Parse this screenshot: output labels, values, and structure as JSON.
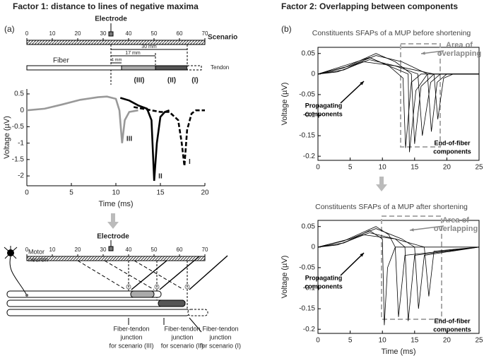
{
  "titles": {
    "left": "Factor 1: distance to lines of negative maxima",
    "right": "Factor 2: Overlapping between components"
  },
  "panels": [
    "(a)",
    "(b)"
  ],
  "scenario_ruler": {
    "label": "Scenario",
    "electrode": "Electrode",
    "xlim": [
      0,
      70
    ],
    "xticks": [
      0,
      10,
      20,
      30,
      40,
      50,
      60,
      70
    ]
  },
  "fiber": {
    "fiber": "Fiber",
    "tendon": "Tendon",
    "distances": [
      "30 mm",
      "17 mm",
      "4 mm"
    ],
    "scenarios": [
      "(III)",
      "(II)",
      "(I)"
    ]
  },
  "schematic": {
    "electrode": "Electrode",
    "xlim": [
      0,
      70
    ],
    "xticks": [
      0,
      10,
      20,
      30,
      40,
      50,
      60,
      70
    ],
    "motor_neuron": [
      "Motor",
      "neuron"
    ],
    "junctions": [
      [
        "Fiber-tendon",
        "junction",
        "for scenario (III)"
      ],
      [
        "Fiber-tendon",
        "junction",
        "for scenario (II)"
      ],
      [
        "Fiber-tendon",
        "junction",
        "for scenario (I)"
      ]
    ]
  },
  "chart_data": [
    {
      "type": "line",
      "xlabel": "Time  (ms)",
      "ylabel": "Voltage (µV)",
      "xlim": [
        0,
        20
      ],
      "xticks": [
        0,
        5,
        10,
        15,
        20
      ],
      "ylim": [
        -2.3,
        0.65
      ],
      "yticks": [
        0.5,
        0,
        -0.5,
        -1,
        -1.5,
        -2
      ],
      "series": [
        {
          "name": "III",
          "color": "#999999",
          "dash": false,
          "x": [
            0,
            2,
            4,
            6,
            8,
            9,
            10,
            10.4,
            10.7,
            11,
            11.5,
            12.5
          ],
          "values": [
            0,
            0.05,
            0.18,
            0.32,
            0.4,
            0.42,
            0.35,
            0,
            -1.0,
            -0.3,
            -0.05,
            0
          ]
        },
        {
          "name": "II",
          "color": "#000000",
          "dash": false,
          "x": [
            10.5,
            11.5,
            12.5,
            13.5,
            14,
            14.3,
            14.6,
            15,
            15.5,
            16
          ],
          "values": [
            0.38,
            0.3,
            0.15,
            0.05,
            -0.3,
            -2.15,
            -1.0,
            -0.2,
            -0.05,
            0
          ]
        },
        {
          "name": "I",
          "color": "#000000",
          "dash": true,
          "x": [
            12,
            13,
            14,
            15,
            16,
            17,
            17.4,
            17.7,
            18,
            18.5,
            19,
            20
          ],
          "values": [
            0.1,
            0.05,
            0,
            -0.05,
            -0.05,
            -0.3,
            -1.0,
            -1.7,
            -0.6,
            -0.1,
            0,
            0
          ]
        }
      ]
    },
    {
      "type": "line",
      "title": "Constituents SFAPs of a MUP before shortening",
      "ylabel": "Voltage (µV)",
      "xlim": [
        0,
        25
      ],
      "xticks": [
        0,
        5,
        10,
        15,
        20,
        25
      ],
      "ylim": [
        -0.21,
        0.065
      ],
      "yticks": [
        0.05,
        0,
        -0.05,
        -0.1,
        -0.15,
        -0.2
      ],
      "annotations": [
        {
          "text": [
            "Area of",
            "overlapping"
          ]
        },
        {
          "text": [
            "Propagating",
            "components"
          ]
        },
        {
          "text": [
            "End-of-fiber",
            "components"
          ]
        }
      ],
      "series": [
        {
          "color": "#000000",
          "x": [
            0,
            4,
            8,
            11,
            13.2,
            13.6,
            14.5,
            16,
            25
          ],
          "values": [
            0,
            0.01,
            0.04,
            0.02,
            -0.01,
            -0.18,
            -0.02,
            0,
            0
          ]
        },
        {
          "color": "#000000",
          "x": [
            0,
            4,
            9,
            12,
            14.5,
            15,
            16,
            18,
            25
          ],
          "values": [
            0,
            0.015,
            0.05,
            0.03,
            0,
            -0.17,
            -0.03,
            0,
            0
          ]
        },
        {
          "color": "#000000",
          "x": [
            0,
            3,
            8,
            12,
            15.5,
            16.2,
            17.5,
            19,
            25
          ],
          "values": [
            0,
            0.005,
            0.035,
            0.02,
            0,
            -0.15,
            -0.02,
            0,
            0
          ]
        },
        {
          "color": "#000000",
          "x": [
            0,
            5,
            9,
            13,
            17,
            17.6,
            18.5,
            20,
            25
          ],
          "values": [
            0,
            0.02,
            0.045,
            0.03,
            0,
            -0.14,
            -0.02,
            0,
            0
          ]
        },
        {
          "color": "#000000",
          "x": [
            0,
            4,
            7,
            12,
            18,
            18.6,
            19.5,
            21,
            25
          ],
          "values": [
            0,
            0.01,
            0.03,
            0.02,
            0,
            -0.11,
            -0.01,
            0,
            0
          ]
        },
        {
          "color": "#000000",
          "x": [
            0,
            4,
            8,
            11,
            14,
            14.2,
            15.2,
            17,
            25
          ],
          "values": [
            0,
            0.02,
            0.04,
            0.02,
            0,
            -0.19,
            -0.04,
            0,
            0
          ]
        }
      ]
    },
    {
      "type": "line",
      "title": "Constituents SFAPs of a MUP after shortening",
      "xlabel": "Time  (ms)",
      "ylabel": "Voltage (µV)",
      "xlim": [
        0,
        25
      ],
      "xticks": [
        0,
        5,
        10,
        15,
        20,
        25
      ],
      "ylim": [
        -0.21,
        0.065
      ],
      "yticks": [
        0.05,
        0,
        -0.05,
        -0.1,
        -0.15,
        -0.2
      ],
      "annotations": [
        {
          "text": [
            "Area of",
            "overlapping"
          ]
        },
        {
          "text": [
            "Propagating",
            "components"
          ]
        },
        {
          "text": [
            "End-of-fiber",
            "components"
          ]
        }
      ],
      "series": [
        {
          "color": "#000000",
          "x": [
            0,
            4,
            8,
            10,
            10.3,
            10.8,
            12,
            25
          ],
          "values": [
            0,
            0.01,
            0.04,
            0.02,
            -0.19,
            -0.05,
            0,
            0
          ]
        },
        {
          "color": "#000000",
          "x": [
            0,
            4,
            9,
            11,
            12,
            12.5,
            13.5,
            25
          ],
          "values": [
            0,
            0.015,
            0.05,
            0.03,
            0,
            -0.17,
            -0.02,
            0
          ]
        },
        {
          "color": "#000000",
          "x": [
            0,
            3,
            8,
            12,
            13.5,
            14,
            15,
            25
          ],
          "values": [
            0,
            0.005,
            0.035,
            0.02,
            0,
            -0.18,
            -0.02,
            0
          ]
        },
        {
          "color": "#000000",
          "x": [
            0,
            5,
            9,
            13,
            15,
            15.6,
            16.5,
            25
          ],
          "values": [
            0,
            0.02,
            0.045,
            0.02,
            0,
            -0.15,
            -0.02,
            0
          ]
        },
        {
          "color": "#000000",
          "x": [
            0,
            4,
            7,
            12,
            16.5,
            17.2,
            18,
            25
          ],
          "values": [
            0,
            0.01,
            0.03,
            0.02,
            0,
            -0.12,
            -0.01,
            0
          ]
        }
      ]
    }
  ]
}
